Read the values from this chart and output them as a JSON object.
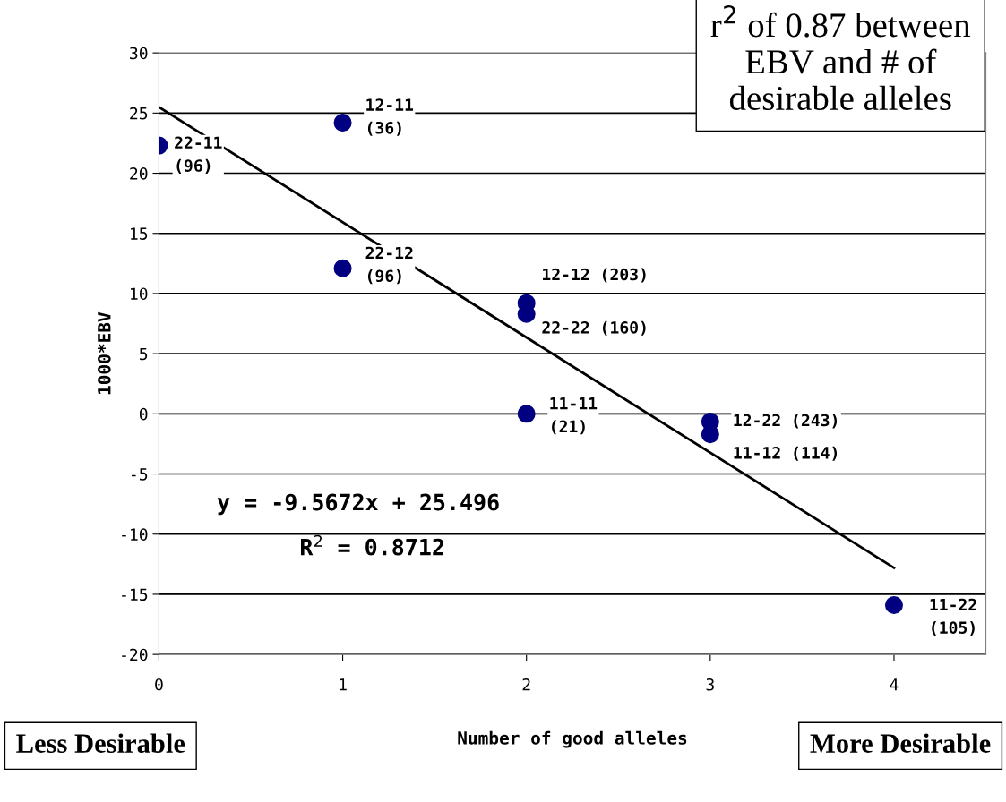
{
  "chart_data": {
    "type": "scatter",
    "xlabel": "Number of good alleles",
    "ylabel": "1000*EBV",
    "series": [
      {
        "color": "#000080",
        "marker": "circle",
        "x": [
          0,
          1,
          1,
          2,
          2,
          2,
          3,
          3,
          4
        ],
        "values": [
          22.3,
          24.2,
          12.1,
          9.2,
          8.3,
          0,
          -0.65,
          -1.7,
          -15.9
        ]
      },
      {
        "type": "line",
        "color": "#000000",
        "marker": "none",
        "line_style": "solid",
        "x": [
          0,
          4
        ],
        "values": [
          25.5,
          -12.8
        ]
      }
    ],
    "xlim": [
      0,
      4.5
    ],
    "xticks": [
      0,
      1,
      2,
      3,
      4
    ],
    "ylim": [
      -20,
      30
    ],
    "yticks": [
      -20,
      -15,
      -10,
      -5,
      0,
      5,
      10,
      15,
      20,
      25,
      30
    ],
    "grid": "y",
    "legend": false,
    "annotations": [
      {
        "text": "22-11\n(96)",
        "x": 0,
        "y": 22.3
      },
      {
        "text": "12-11\n(36)",
        "x": 1,
        "y": 24.2
      },
      {
        "text": "22-12\n(96)",
        "x": 1,
        "y": 12.1
      },
      {
        "text": "12-12 (203)",
        "x": 2,
        "y": 9.2
      },
      {
        "text": "22-22 (160)",
        "x": 2,
        "y": 8.3
      },
      {
        "text": "11-11\n(21)",
        "x": 2,
        "y": 0
      },
      {
        "text": "12-22 (243)",
        "x": 3,
        "y": -0.65
      },
      {
        "text": "11-12 (114)",
        "x": 3,
        "y": -1.7
      },
      {
        "text": "11-22\n(105)",
        "x": 4,
        "y": -15.9
      },
      "y = -9.5672x + 25.496",
      "R$^{2}$ = 0.8712",
      "r$^{2}$ of 0.87 between\nEBV and # of\ndesirable alleles",
      "Less Desirable",
      "More Desirable"
    ]
  }
}
